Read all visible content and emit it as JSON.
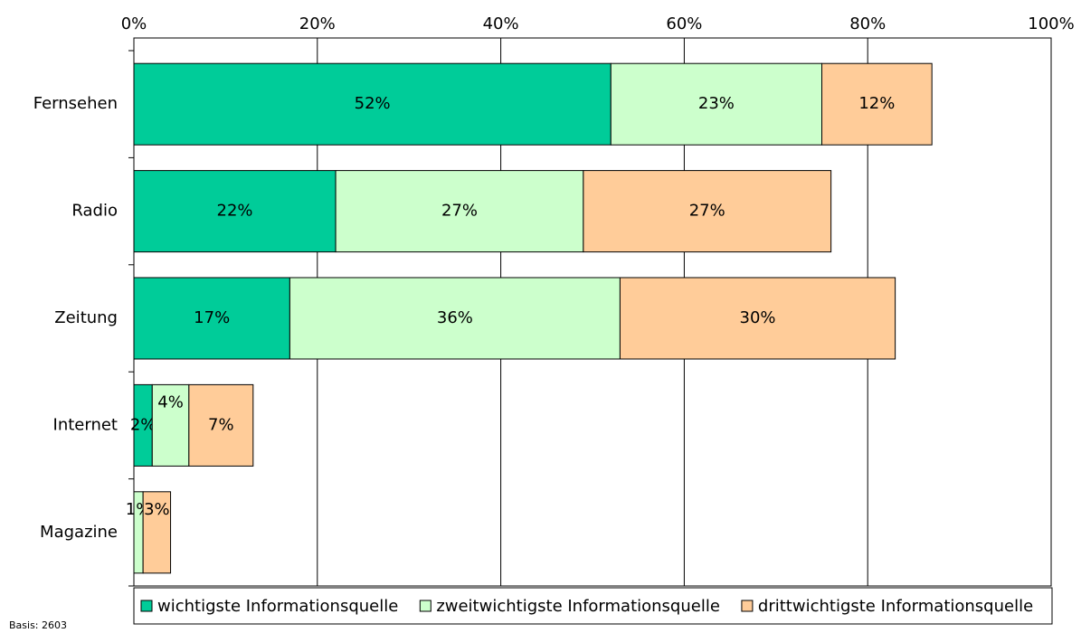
{
  "chart_data": {
    "type": "stacked-barh",
    "categories": [
      "Fernsehen",
      "Radio",
      "Zeitung",
      "Internet",
      "Magazine"
    ],
    "series": [
      {
        "name": "wichtigste Informationsquelle",
        "color": "#00cc99",
        "values": [
          52,
          22,
          17,
          2,
          0
        ],
        "value_labels": [
          "52%",
          "22%",
          "17%",
          "2%",
          null
        ]
      },
      {
        "name": "zweitwichtigste Informationsquelle",
        "color": "#ccffcc",
        "values": [
          23,
          27,
          36,
          4,
          1
        ],
        "value_labels": [
          "23%",
          "27%",
          "36%",
          "4%",
          "1%"
        ]
      },
      {
        "name": "drittwichtigste Informationsquelle",
        "color": "#ffcc99",
        "values": [
          12,
          27,
          30,
          7,
          3
        ],
        "value_labels": [
          "12%",
          "27%",
          "30%",
          "7%",
          "3%"
        ]
      }
    ],
    "xlim": [
      0,
      100
    ],
    "xticks": [
      {
        "value": 0,
        "label": "0%"
      },
      {
        "value": 20,
        "label": "20%"
      },
      {
        "value": 40,
        "label": "40%"
      },
      {
        "value": 60,
        "label": "60%"
      },
      {
        "value": 80,
        "label": "80%"
      },
      {
        "value": 100,
        "label": "100%"
      }
    ],
    "grid": true,
    "legend": "bottom",
    "footnote": "Basis: 2603"
  }
}
